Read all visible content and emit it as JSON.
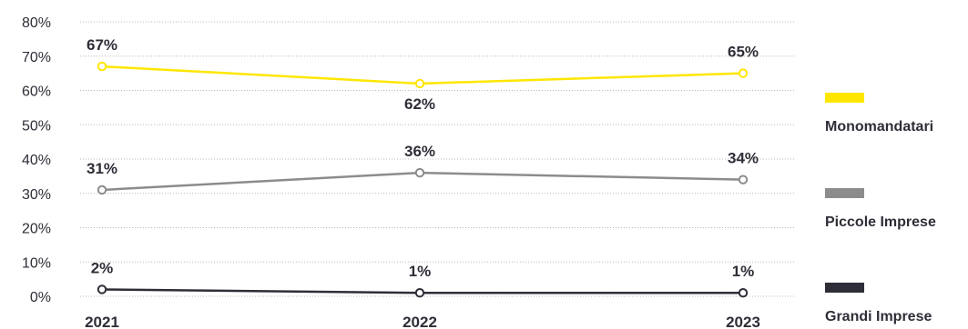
{
  "chart_data": {
    "type": "line",
    "x": [
      "2021",
      "2022",
      "2023"
    ],
    "ylim": [
      0,
      80
    ],
    "yticks": [
      "0%",
      "10%",
      "20%",
      "30%",
      "40%",
      "50%",
      "60%",
      "70%",
      "80%"
    ],
    "grid": true,
    "legend_position": "right",
    "series": [
      {
        "name": "Monomandatari",
        "values": [
          67,
          62,
          65
        ],
        "labels": [
          "67%",
          "62%",
          "65%"
        ],
        "label_pos": [
          "above",
          "below",
          "above"
        ],
        "color": "#ffe600"
      },
      {
        "name": "Piccole Imprese",
        "values": [
          31,
          36,
          34
        ],
        "labels": [
          "31%",
          "36%",
          "34%"
        ],
        "label_pos": [
          "above",
          "above",
          "above"
        ],
        "color": "#8c8c8c"
      },
      {
        "name": "Grandi Imprese",
        "values": [
          2,
          1,
          1
        ],
        "labels": [
          "2%",
          "1%",
          "1%"
        ],
        "label_pos": [
          "above",
          "above",
          "above"
        ],
        "color": "#2e2e38"
      }
    ]
  }
}
